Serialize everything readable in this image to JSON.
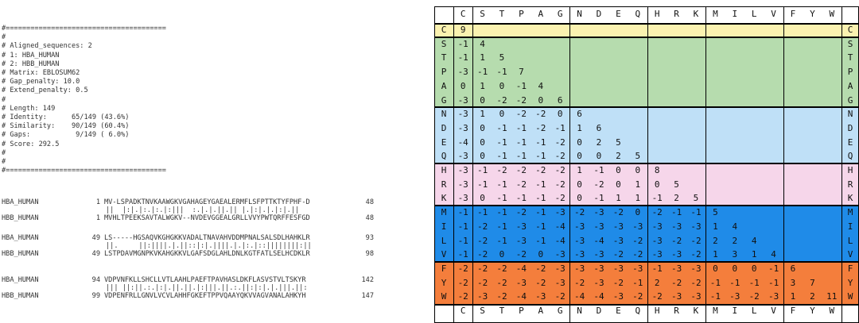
{
  "alignment": {
    "header_lines": [
      "#=======================================",
      "#",
      "# Aligned_sequences: 2",
      "# 1: HBA_HUMAN",
      "# 2: HBB_HUMAN",
      "# Matrix: EBLOSUM62",
      "# Gap_penalty: 10.0",
      "# Extend_penalty: 0.5",
      "#",
      "# Length: 149",
      "# Identity:      65/149 (43.6%)",
      "# Similarity:    90/149 (60.4%)",
      "# Gaps:           9/149 ( 6.0%)",
      "# Score: 292.5",
      "#",
      "#",
      "#======================================="
    ],
    "blocks": [
      {
        "top": {
          "name": "HBA_HUMAN",
          "start": "1",
          "seq": "MV-LSPADKTNVKAAWGKVGAHAGEYGAEALERMFLSFPTTKTYFPHF-D",
          "end": "48"
        },
        "match": "||  |:|.|:.|:.|:|||  :.|.|.||.|| |.|:|.|.|:|.||",
        "bottom": {
          "name": "HBB_HUMAN",
          "start": "1",
          "seq": "MVHLTPEEKSAVTALWGKV--NVDEVGGEALGRLLVVYPWTQRFFESFGD",
          "end": "48"
        }
      },
      {
        "top": {
          "name": "HBA_HUMAN",
          "start": "49",
          "seq": "LS-----HGSAQVKGHGKKVADALTNAVAHVDDMPNALSALSDLHAHKLR",
          "end": "93"
        },
        "match": "||.     ||:||||.|.||::|:|.||||.|.|:.|::||||||||:||",
        "bottom": {
          "name": "HBB_HUMAN",
          "start": "49",
          "seq": "LSTPDAVMGNPKVKAHGKKVLGAFSDGLAHLDNLKGTFATLSELHCDKLR",
          "end": "98"
        }
      },
      {
        "top": {
          "name": "HBA_HUMAN",
          "start": "94",
          "seq": "VDPVNFKLLSHCLLVTLAAHLPAEFTPAVHASLDKFLASVSTVLTSKYR",
          "end": "142"
        },
        "match": "||| ||:||.:.|:|.||.||.|:|||.||.:.||:|:|.|.|||.||:",
        "bottom": {
          "name": "HBB_HUMAN",
          "start": "99",
          "seq": "VDPENFRLLGNVLVCVLAHHFGKEFTPPVQAAYQKVVAGVANALAHKYH",
          "end": "147"
        }
      }
    ]
  },
  "matrix": {
    "labels": [
      "C",
      "S",
      "T",
      "P",
      "A",
      "G",
      "N",
      "D",
      "E",
      "Q",
      "H",
      "R",
      "K",
      "M",
      "I",
      "L",
      "V",
      "F",
      "Y",
      "W"
    ],
    "groups": [
      {
        "rows": [
          0
        ],
        "color": "#fbf2b0"
      },
      {
        "rows": [
          1,
          2,
          3,
          4,
          5
        ],
        "color": "#b6dcae"
      },
      {
        "rows": [
          6,
          7,
          8,
          9
        ],
        "color": "#bfe0f7"
      },
      {
        "rows": [
          10,
          11,
          12
        ],
        "color": "#f6d6ea"
      },
      {
        "rows": [
          13,
          14,
          15,
          16
        ],
        "color": "#1f8be8"
      },
      {
        "rows": [
          17,
          18,
          19
        ],
        "color": "#f47e3c"
      }
    ],
    "rows": [
      [
        "9"
      ],
      [
        "-1",
        "4"
      ],
      [
        "-1",
        "1",
        "5"
      ],
      [
        "-3",
        "-1",
        "-1",
        "7"
      ],
      [
        "0",
        "1",
        "0",
        "-1",
        "4"
      ],
      [
        "-3",
        "0",
        "-2",
        "-2",
        "0",
        "6"
      ],
      [
        "-3",
        "1",
        "0",
        "-2",
        "-2",
        "0",
        "6"
      ],
      [
        "-3",
        "0",
        "-1",
        "-1",
        "-2",
        "-1",
        "1",
        "6"
      ],
      [
        "-4",
        "0",
        "-1",
        "-1",
        "-1",
        "-2",
        "0",
        "2",
        "5"
      ],
      [
        "-3",
        "0",
        "-1",
        "-1",
        "-1",
        "-2",
        "0",
        "0",
        "2",
        "5"
      ],
      [
        "-3",
        "-1",
        "-2",
        "-2",
        "-2",
        "-2",
        "1",
        "-1",
        "0",
        "0",
        "8"
      ],
      [
        "-3",
        "-1",
        "-1",
        "-2",
        "-1",
        "-2",
        "0",
        "-2",
        "0",
        "1",
        "0",
        "5"
      ],
      [
        "-3",
        "0",
        "-1",
        "-1",
        "-1",
        "-2",
        "0",
        "-1",
        "1",
        "1",
        "-1",
        "2",
        "5"
      ],
      [
        "-1",
        "-1",
        "-1",
        "-2",
        "-1",
        "-3",
        "-2",
        "-3",
        "-2",
        "0",
        "-2",
        "-1",
        "-1",
        "5"
      ],
      [
        "-1",
        "-2",
        "-1",
        "-3",
        "-1",
        "-4",
        "-3",
        "-3",
        "-3",
        "-3",
        "-3",
        "-3",
        "-3",
        "1",
        "4"
      ],
      [
        "-1",
        "-2",
        "-1",
        "-3",
        "-1",
        "-4",
        "-3",
        "-4",
        "-3",
        "-2",
        "-3",
        "-2",
        "-2",
        "2",
        "2",
        "4"
      ],
      [
        "-1",
        "-2",
        "0",
        "-2",
        "0",
        "-3",
        "-3",
        "-3",
        "-2",
        "-2",
        "-3",
        "-3",
        "-2",
        "1",
        "3",
        "1",
        "4"
      ],
      [
        "-2",
        "-2",
        "-2",
        "-4",
        "-2",
        "-3",
        "-3",
        "-3",
        "-3",
        "-3",
        "-1",
        "-3",
        "-3",
        "0",
        "0",
        "0",
        "-1",
        "6"
      ],
      [
        "-2",
        "-2",
        "-2",
        "-3",
        "-2",
        "-3",
        "-2",
        "-3",
        "-2",
        "-1",
        "2",
        "-2",
        "-2",
        "-1",
        "-1",
        "-1",
        "-1",
        "3",
        "7"
      ],
      [
        "-2",
        "-3",
        "-2",
        "-4",
        "-3",
        "-2",
        "-4",
        "-4",
        "-3",
        "-2",
        "-2",
        "-3",
        "-3",
        "-1",
        "-3",
        "-2",
        "-3",
        "1",
        "2",
        "11"
      ]
    ]
  }
}
